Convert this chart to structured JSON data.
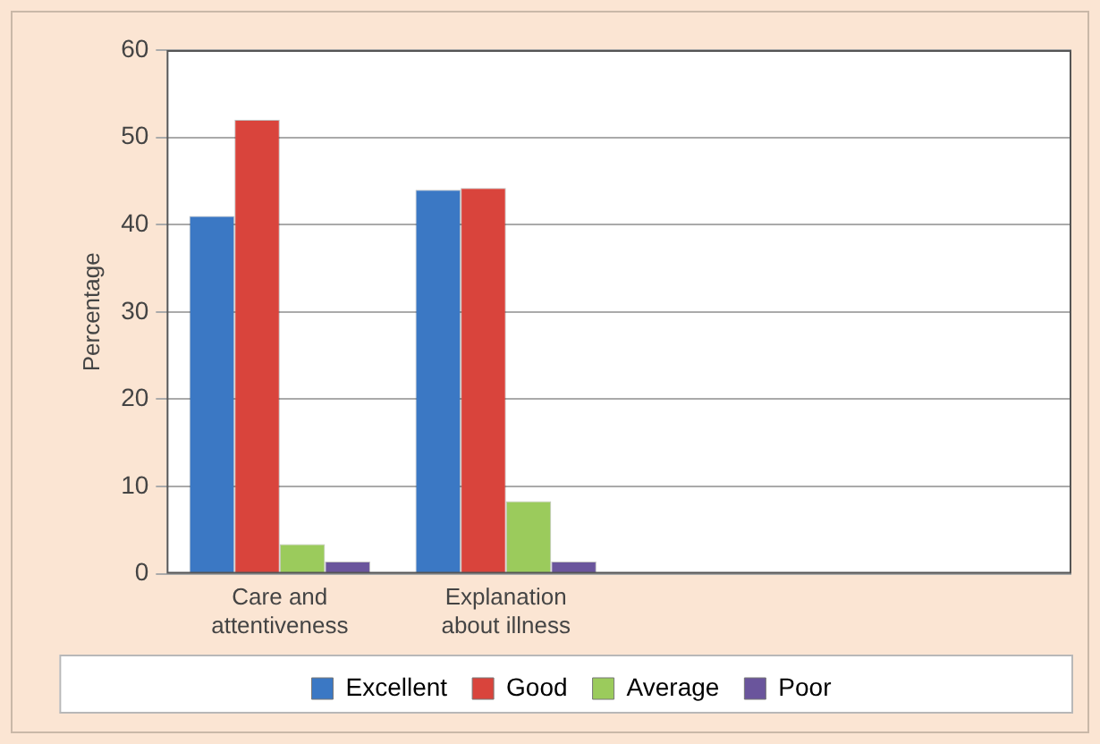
{
  "chart_data": {
    "type": "bar",
    "ylabel": "Percentage",
    "categories": [
      "Care and attentiveness",
      "Explanation about illness",
      null,
      null
    ],
    "series": [
      {
        "name": "Excellent",
        "color": "#3b78c4",
        "values": [
          41,
          44,
          null,
          null
        ]
      },
      {
        "name": "Good",
        "color": "#d9443c",
        "values": [
          52,
          44.2,
          null,
          null
        ]
      },
      {
        "name": "Average",
        "color": "#9bcb5c",
        "values": [
          3.4,
          8.3,
          null,
          null
        ]
      },
      {
        "name": "Poor",
        "color": "#6a559c",
        "values": [
          1.4,
          1.4,
          null,
          null
        ]
      }
    ],
    "ylim": [
      0,
      60
    ],
    "yticks": [
      0,
      10,
      20,
      30,
      40,
      50,
      60
    ],
    "grid": "y",
    "legend": "bottom"
  }
}
